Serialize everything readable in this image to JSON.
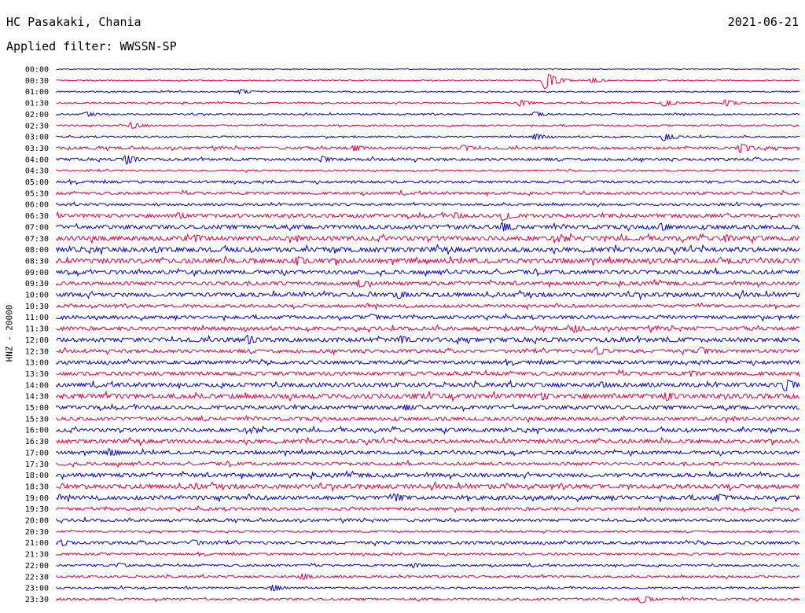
{
  "header": {
    "station": "HC Pasakaki, Chania",
    "date": "2021-06-21",
    "filter": "Applied filter: WWSSN-SP"
  },
  "chart_data": {
    "type": "line",
    "title": "HC Pasakaki, Chania",
    "ylabel": "HNZ - 20000",
    "rows": [
      "00:00",
      "00:30",
      "01:00",
      "01:30",
      "02:00",
      "02:30",
      "03:00",
      "03:30",
      "04:00",
      "04:30",
      "05:00",
      "05:30",
      "06:00",
      "06:30",
      "07:00",
      "07:30",
      "08:00",
      "08:30",
      "09:00",
      "09:30",
      "10:00",
      "10:30",
      "11:00",
      "11:30",
      "12:00",
      "12:30",
      "13:00",
      "13:30",
      "14:00",
      "14:30",
      "15:00",
      "15:30",
      "16:00",
      "16:30",
      "17:00",
      "17:30",
      "18:00",
      "18:30",
      "19:00",
      "19:30",
      "20:00",
      "20:30",
      "21:00",
      "21:30",
      "22:00",
      "22:30",
      "23:00",
      "23:30"
    ],
    "series_colors": [
      "#0000cc",
      "#e8003c"
    ],
    "noise_level": [
      0.5,
      0.6,
      0.7,
      0.9,
      0.9,
      0.9,
      1.0,
      1.6,
      1.6,
      1.0,
      1.5,
      1.6,
      1.4,
      2.2,
      2.4,
      2.6,
      2.8,
      2.8,
      2.3,
      2.1,
      2.5,
      1.8,
      2.0,
      2.2,
      2.6,
      2.0,
      2.1,
      2.2,
      2.4,
      2.8,
      2.2,
      2.0,
      2.1,
      2.3,
      2.0,
      1.9,
      2.3,
      2.6,
      2.4,
      1.8,
      1.6,
      1.0,
      1.7,
      1.3,
      1.2,
      1.3,
      1.1,
      1.4
    ],
    "events": [
      {
        "row": 1,
        "minute": 19.7,
        "amplitude": 11
      },
      {
        "row": 1,
        "minute": 21.6,
        "amplitude": 3
      },
      {
        "row": 2,
        "minute": 7.4,
        "amplitude": 3
      },
      {
        "row": 3,
        "minute": 18.7,
        "amplitude": 4
      },
      {
        "row": 3,
        "minute": 24.5,
        "amplitude": 4
      },
      {
        "row": 3,
        "minute": 27.0,
        "amplitude": 4
      },
      {
        "row": 4,
        "minute": 1.2,
        "amplitude": 3
      },
      {
        "row": 4,
        "minute": 19.3,
        "amplitude": 3
      },
      {
        "row": 5,
        "minute": 3.0,
        "amplitude": 4
      },
      {
        "row": 6,
        "minute": 19.3,
        "amplitude": 4
      },
      {
        "row": 6,
        "minute": 24.5,
        "amplitude": 5
      },
      {
        "row": 7,
        "minute": 12.0,
        "amplitude": 4
      },
      {
        "row": 7,
        "minute": 16.4,
        "amplitude": 4
      },
      {
        "row": 7,
        "minute": 27.6,
        "amplitude": 6
      },
      {
        "row": 8,
        "minute": 2.8,
        "amplitude": 6
      },
      {
        "row": 8,
        "minute": 10.7,
        "amplitude": 4
      },
      {
        "row": 13,
        "minute": 4.9,
        "amplitude": 4
      },
      {
        "row": 13,
        "minute": 16.1,
        "amplitude": 4
      },
      {
        "row": 13,
        "minute": 18.0,
        "amplitude": 6
      },
      {
        "row": 14,
        "minute": 18.0,
        "amplitude": 6
      },
      {
        "row": 14,
        "minute": 24.4,
        "amplitude": 5
      },
      {
        "row": 15,
        "minute": 5.6,
        "amplitude": 5
      },
      {
        "row": 15,
        "minute": 27.0,
        "amplitude": 5
      },
      {
        "row": 16,
        "minute": 4.0,
        "amplitude": 4
      },
      {
        "row": 17,
        "minute": 9.7,
        "amplitude": 6
      },
      {
        "row": 19,
        "minute": 12.2,
        "amplitude": 5
      },
      {
        "row": 20,
        "minute": 13.8,
        "amplitude": 5
      },
      {
        "row": 22,
        "minute": 12.7,
        "amplitude": 4
      },
      {
        "row": 23,
        "minute": 20.9,
        "amplitude": 5
      },
      {
        "row": 24,
        "minute": 7.7,
        "amplitude": 6
      },
      {
        "row": 24,
        "minute": 13.9,
        "amplitude": 5
      },
      {
        "row": 25,
        "minute": 21.8,
        "amplitude": 5
      },
      {
        "row": 25,
        "minute": 26.0,
        "amplitude": 5
      },
      {
        "row": 27,
        "minute": 25.6,
        "amplitude": 4
      },
      {
        "row": 28,
        "minute": 29.4,
        "amplitude": 8
      },
      {
        "row": 28,
        "minute": 22.0,
        "amplitude": 4
      },
      {
        "row": 29,
        "minute": 19.6,
        "amplitude": 5
      },
      {
        "row": 29,
        "minute": 24.6,
        "amplitude": 6
      },
      {
        "row": 30,
        "minute": 14.1,
        "amplitude": 4
      },
      {
        "row": 34,
        "minute": 2.1,
        "amplitude": 5
      },
      {
        "row": 37,
        "minute": 5.6,
        "amplitude": 4
      },
      {
        "row": 38,
        "minute": 13.7,
        "amplitude": 5
      },
      {
        "row": 38,
        "minute": 26.7,
        "amplitude": 5
      },
      {
        "row": 42,
        "minute": 0.2,
        "amplitude": 4
      },
      {
        "row": 42,
        "minute": 5.5,
        "amplitude": 4
      },
      {
        "row": 44,
        "minute": 14.4,
        "amplitude": 3
      },
      {
        "row": 44,
        "minute": 2.5,
        "amplitude": 3
      },
      {
        "row": 45,
        "minute": 9.9,
        "amplitude": 4
      },
      {
        "row": 46,
        "minute": 8.7,
        "amplitude": 4
      },
      {
        "row": 47,
        "minute": 23.6,
        "amplitude": 5
      }
    ]
  }
}
